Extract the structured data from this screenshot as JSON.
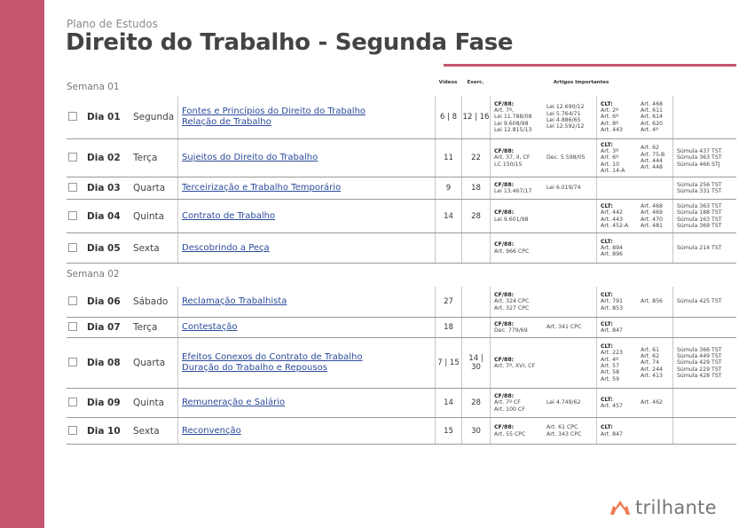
{
  "header": {
    "subtitle": "Plano de Estudos",
    "title": "Direito do Trabalho - Segunda Fase"
  },
  "columns": {
    "videos": "Vídeos",
    "exerc": "Exerc.",
    "artigos": "Artigos Importantes"
  },
  "colors": {
    "accent": "#c4566f",
    "link": "#2a4a9a",
    "logo": "#f07a50"
  },
  "brand": {
    "logo_text": "trilhante"
  },
  "weeks": [
    {
      "label": "Semana 01",
      "days": [
        {
          "dia": "Dia 01",
          "weekday": "Segunda",
          "topics": [
            "Fontes e Princípios do Direito do Trabalho",
            "Relação de Trabalho"
          ],
          "videos": "6 | 8",
          "exerc": "12 | 16",
          "cf": [
            "CF/88:",
            "Art. 7º,",
            "Lei 11.788/08",
            "Lei 9.608/98",
            "Lei 12.815/13"
          ],
          "cf2": [
            "Lei 12.690/12",
            "Lei 5.764/71",
            "Lei 4.886/65",
            "Lei 12.592/12"
          ],
          "clt": [
            "CLT:",
            "Art. 2º",
            "Art. 6º",
            "Art. 8º",
            "Art. 443"
          ],
          "clt2": [
            "Art. 468",
            "Art. 611",
            "Art. 614",
            "Art. 620",
            "Art. 4º"
          ],
          "sumulas": []
        },
        {
          "dia": "Dia 02",
          "weekday": "Terça",
          "topics": [
            "Sujeitos do Direito do Trabalho"
          ],
          "videos": "11",
          "exerc": "22",
          "cf": [
            "CF/88:",
            "Art. 37, II, CF",
            "LC 150/15"
          ],
          "cf2": [
            "Dec. 5.598/05"
          ],
          "clt": [
            "CLT:",
            "Art. 3º",
            "Art. 6º",
            "Art. 10",
            "Art. 14-A"
          ],
          "clt2": [
            "Art. 62",
            "Art. 75-B",
            "Art. 444",
            "Art. 448"
          ],
          "sumulas": [
            "Súmula 437 TST",
            "Súmula 363 TST",
            "Súmula 466 STJ"
          ]
        },
        {
          "dia": "Dia 03",
          "weekday": "Quarta",
          "topics": [
            "Terceirização e Trabalho Temporário"
          ],
          "videos": "9",
          "exerc": "18",
          "cf": [
            "CF/88:",
            "Lei 13.467/17"
          ],
          "cf2": [
            "Lei 6.019/74"
          ],
          "clt": [],
          "clt2": [],
          "sumulas": [
            "Súmula 256 TST",
            "Súmula 331 TST"
          ]
        },
        {
          "dia": "Dia 04",
          "weekday": "Quinta",
          "topics": [
            "Contrato de Trabalho"
          ],
          "videos": "14",
          "exerc": "28",
          "cf": [
            "CF/88:",
            "Lei 9.601/98"
          ],
          "cf2": [],
          "clt": [
            "CLT:",
            "Art. 442",
            "Art. 443",
            "Art. 452-A"
          ],
          "clt2": [
            "Art. 468",
            "Art. 469",
            "Art. 470",
            "Art. 481"
          ],
          "sumulas": [
            "Súmula 363 TST",
            "Súmula 188 TST",
            "Súmula 163 TST",
            "Súmula 369 TST"
          ]
        },
        {
          "dia": "Dia 05",
          "weekday": "Sexta",
          "topics": [
            "Descobrindo a Peça"
          ],
          "videos": "",
          "exerc": "",
          "cf": [
            "CF/88:",
            "Art. 966 CPC"
          ],
          "cf2": [],
          "clt": [
            "CLT:",
            "Art. 894",
            "Art. 896"
          ],
          "clt2": [],
          "sumulas": [
            "Súmula 214 TST"
          ]
        }
      ]
    },
    {
      "label": "Semana 02",
      "days": [
        {
          "dia": "Dia 06",
          "weekday": "Sábado",
          "topics": [
            "Reclamação Trabalhista"
          ],
          "videos": "27",
          "exerc": "",
          "cf": [
            "CF/88:",
            "Art. 324 CPC",
            "Art. 327 CPC"
          ],
          "cf2": [],
          "clt": [
            "CLT:",
            "Art. 791",
            "Art. 853"
          ],
          "clt2": [
            "Art. 856"
          ],
          "sumulas": [
            "Súmula 425 TST"
          ]
        },
        {
          "dia": "Dia 07",
          "weekday": "Terça",
          "topics": [
            "Contestação"
          ],
          "videos": "18",
          "exerc": "",
          "cf": [
            "CF/88:",
            "Dec. 779/69"
          ],
          "cf2": [
            "Art. 341 CPC"
          ],
          "clt": [
            "CLT:",
            "Art. 847"
          ],
          "clt2": [],
          "sumulas": []
        },
        {
          "dia": "Dia 08",
          "weekday": "Quarta",
          "topics": [
            "Efeitos Conexos do Contrato de Trabalho",
            "Duração do Trabalho e Repousos"
          ],
          "videos": "7 | 15",
          "exerc": "14 |\n30",
          "cf": [
            "CF/88:",
            "Art. 7º, XVI, CF"
          ],
          "cf2": [],
          "clt": [
            "CLT:",
            "Art. 223",
            "Art. 4º",
            "Art. 57",
            "Art. 58",
            "Art. 59"
          ],
          "clt2": [
            "Art. 61",
            "Art. 62",
            "Art. 74",
            "Art. 244",
            "Art. 413"
          ],
          "sumulas": [
            "Súmula 366 TST",
            "Súmula 449 TST",
            "Súmula 429 TST",
            "Súmula 229 TST",
            "Súmula 428 TST"
          ]
        },
        {
          "dia": "Dia 09",
          "weekday": "Quinta",
          "topics": [
            "Remuneração e Salário"
          ],
          "videos": "14",
          "exerc": "28",
          "cf": [
            "CF/88:",
            "Art. 7º CF",
            "Art. 100 CF"
          ],
          "cf2": [
            "Lei 4.749/62"
          ],
          "clt": [
            "CLT:",
            "Art. 457"
          ],
          "clt2": [
            "Art. 462"
          ],
          "sumulas": []
        },
        {
          "dia": "Dia 10",
          "weekday": "Sexta",
          "topics": [
            "Reconvenção"
          ],
          "videos": "15",
          "exerc": "30",
          "cf": [
            "CF/88:",
            "Art. 55 CPC"
          ],
          "cf2": [
            "Art. 61 CPC",
            "Art. 343 CPC"
          ],
          "clt": [
            "CLT:",
            "Art. 847"
          ],
          "clt2": [],
          "sumulas": []
        }
      ]
    }
  ]
}
